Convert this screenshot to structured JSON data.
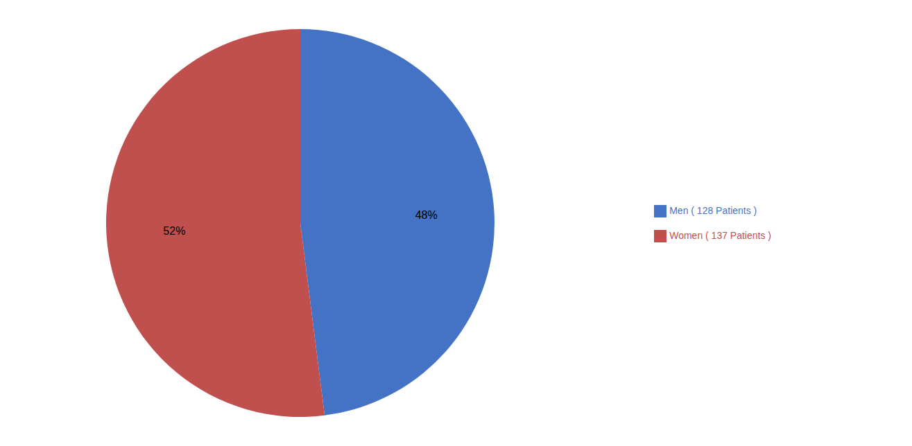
{
  "chart_data": {
    "type": "pie",
    "categories": [
      "Men ( 128 Patients )",
      "Women ( 137 Patients )"
    ],
    "values": [
      48,
      52
    ],
    "value_labels": [
      "48%",
      "52%"
    ],
    "colors": [
      "#4472C4",
      "#C0504D"
    ],
    "data_labels": true,
    "legend": "right"
  }
}
